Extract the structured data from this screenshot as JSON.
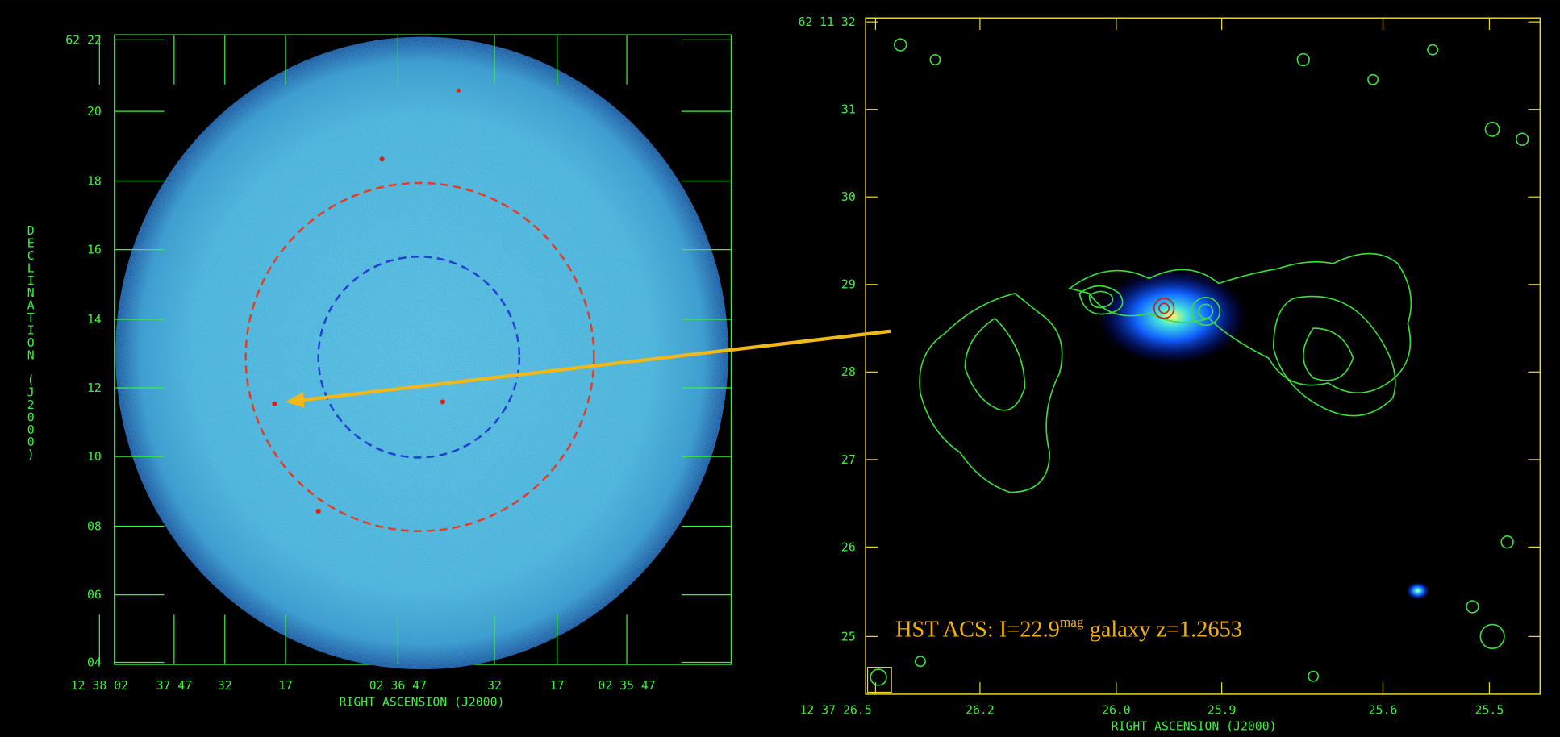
{
  "left_panel": {
    "y_axis_label": "DECLINATION (J2000)",
    "x_axis_label": "RIGHT ASCENSION (J2000)",
    "yticks": [
      "62 22",
      "20",
      "18",
      "16",
      "14",
      "12",
      "10",
      "08",
      "06",
      "04"
    ],
    "xticks": [
      "12 38 02",
      "37 47",
      "32",
      "17",
      "02 36 47",
      "32",
      "17",
      "02 35 47"
    ]
  },
  "right_panel": {
    "x_axis_label": "RIGHT ASCENSION (J2000)",
    "yticks": [
      "62 11 32",
      "31",
      "30",
      "29",
      "28",
      "27",
      "26",
      "25"
    ],
    "xticks": [
      "12 37 26.5",
      "26.2",
      "26.0",
      "25.9",
      "25.6",
      "25.5"
    ],
    "annotation": {
      "text": "HST ACS: I=22.9",
      "superscript": "mag",
      "rest": " galaxy z=1.2653"
    }
  }
}
